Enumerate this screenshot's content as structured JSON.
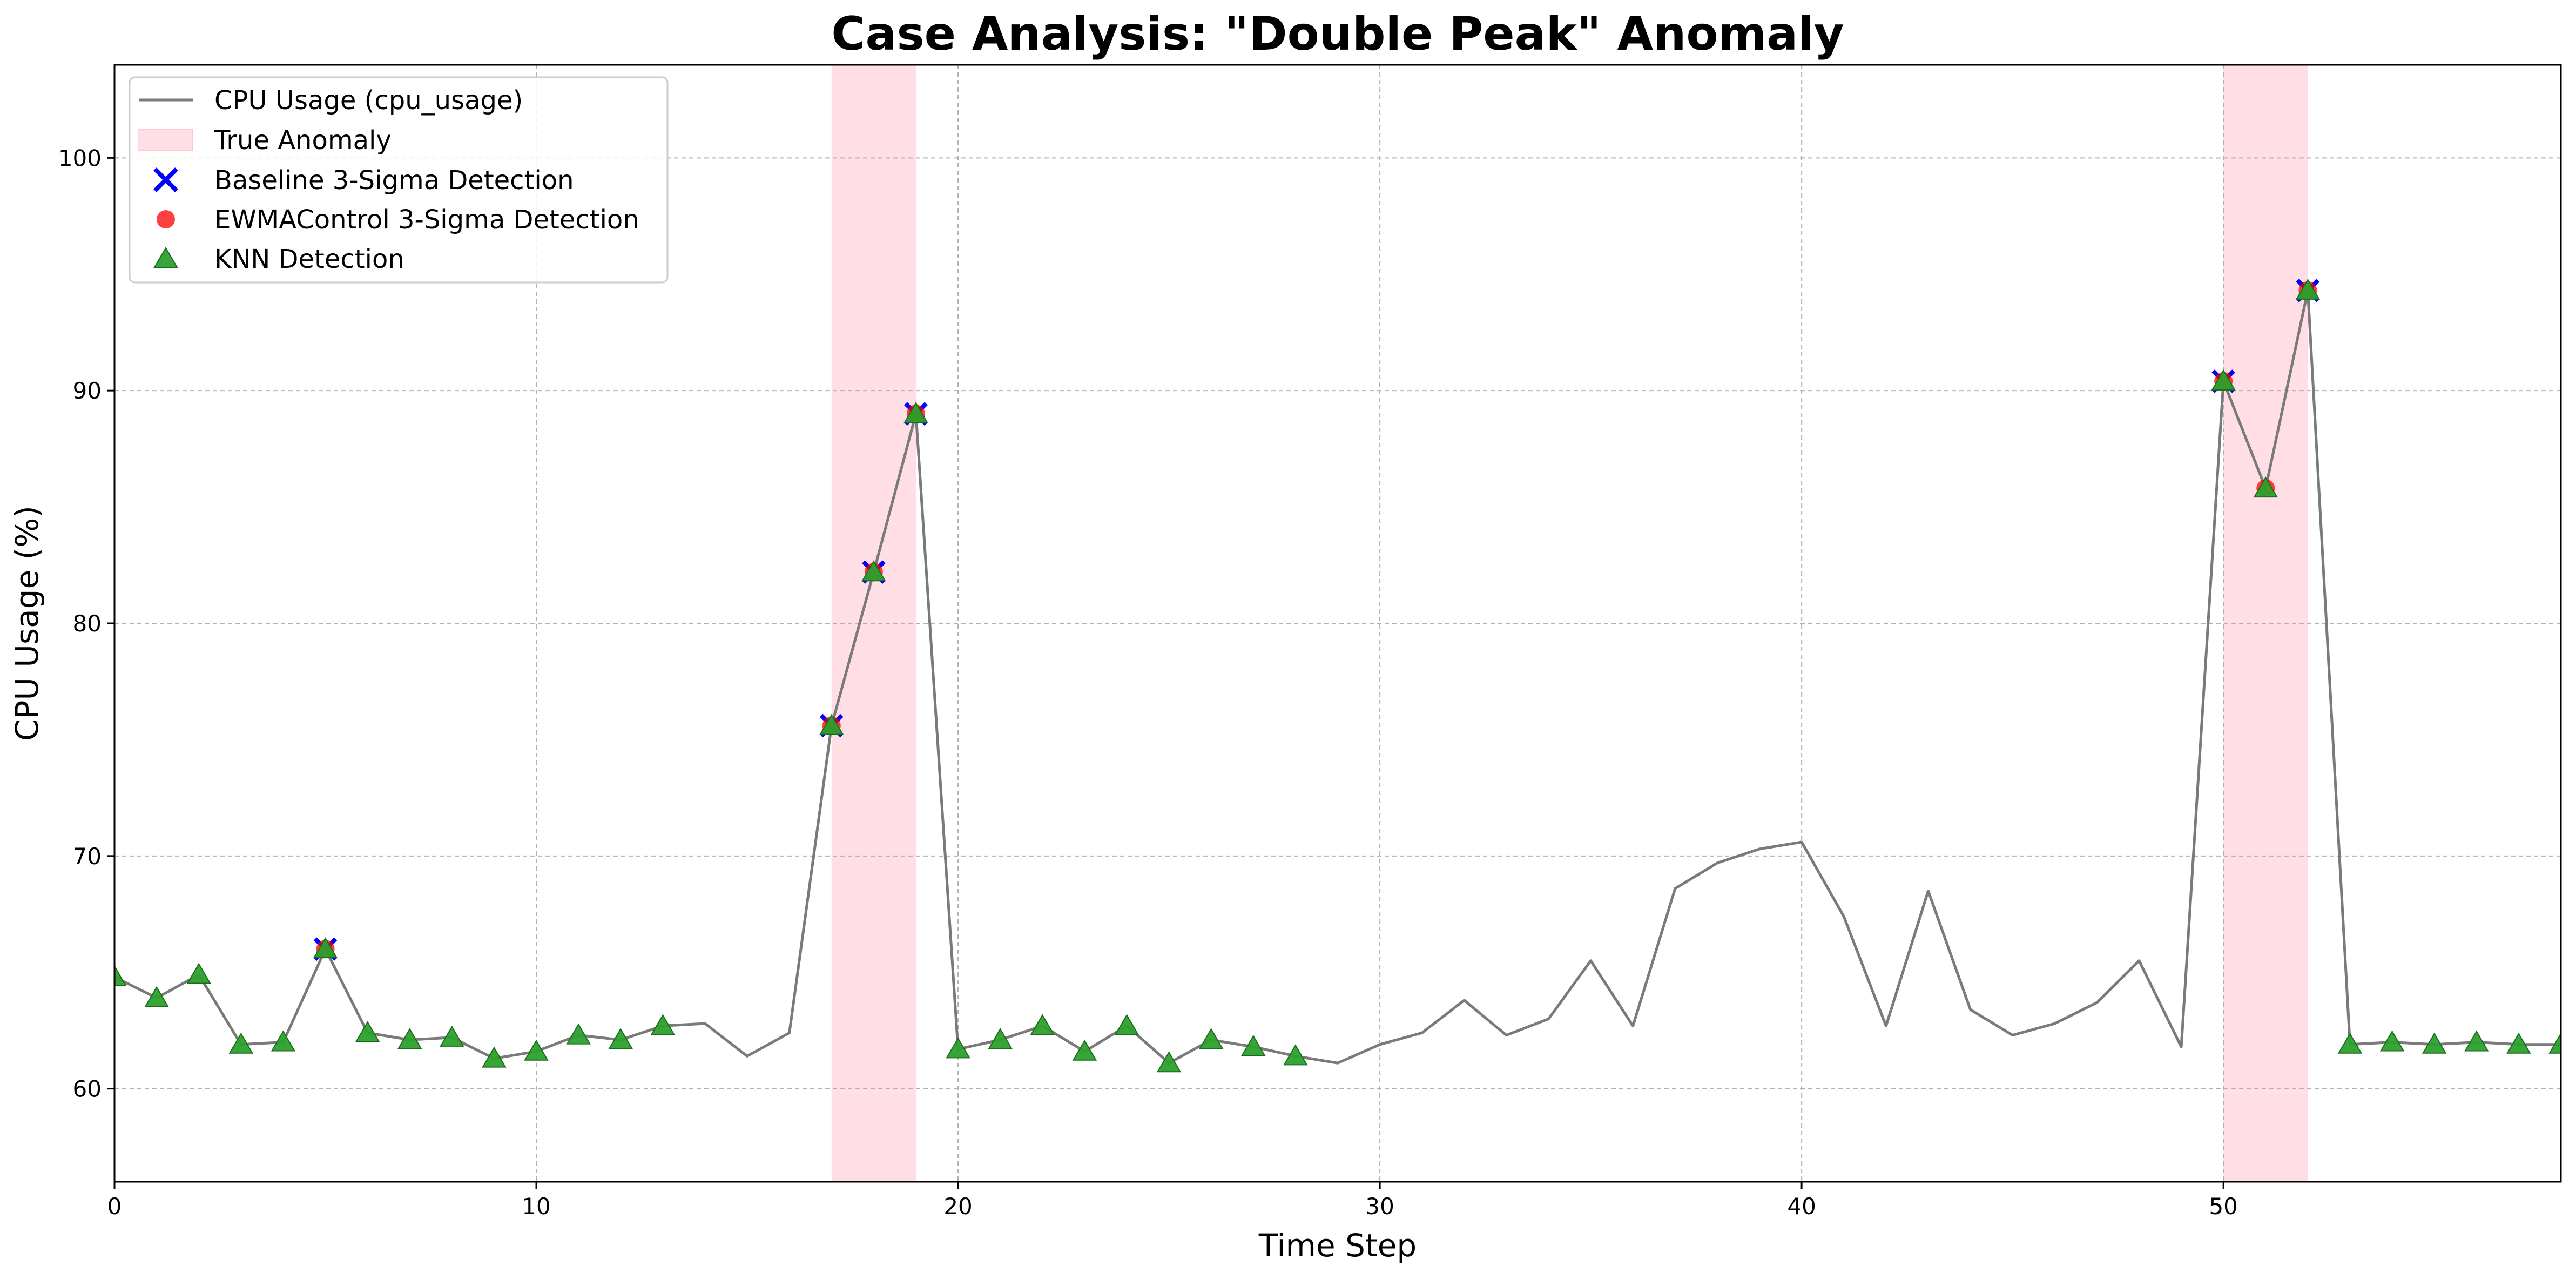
{
  "chart_data": {
    "type": "line",
    "title": "Case Analysis: \"Double Peak\" Anomaly",
    "xlabel": "Time Step",
    "ylabel": "CPU Usage (%)",
    "xlim": [
      0,
      58
    ],
    "ylim": [
      56,
      104
    ],
    "xticks": [
      0,
      10,
      20,
      30,
      40,
      50
    ],
    "yticks": [
      60,
      70,
      80,
      90,
      100
    ],
    "grid": true,
    "legend_position": "upper-left",
    "x": [
      0,
      1,
      2,
      3,
      4,
      5,
      6,
      7,
      8,
      9,
      10,
      11,
      12,
      13,
      14,
      15,
      16,
      17,
      18,
      19,
      20,
      21,
      22,
      23,
      24,
      25,
      26,
      27,
      28,
      29,
      30,
      31,
      32,
      33,
      34,
      35,
      36,
      37,
      38,
      39,
      40,
      41,
      42,
      43,
      44,
      45,
      46,
      47,
      48,
      49,
      50,
      51,
      52,
      53,
      54,
      55,
      56,
      57,
      58
    ],
    "series": [
      {
        "name": "CPU Usage (cpu_usage)",
        "kind": "line",
        "color": "#7a7a7a",
        "values": [
          64.8,
          63.9,
          64.9,
          61.9,
          62.0,
          66.0,
          62.4,
          62.1,
          62.2,
          61.3,
          61.6,
          62.3,
          62.1,
          62.7,
          62.8,
          61.4,
          62.4,
          75.6,
          82.2,
          89.0,
          61.7,
          62.1,
          62.7,
          61.6,
          62.7,
          61.1,
          62.1,
          61.8,
          61.4,
          61.1,
          61.9,
          62.4,
          63.8,
          62.3,
          63.0,
          65.5,
          62.7,
          68.6,
          69.7,
          70.3,
          70.6,
          67.4,
          62.7,
          68.5,
          63.4,
          62.3,
          62.8,
          63.7,
          65.5,
          61.8,
          90.4,
          85.8,
          94.3,
          61.9,
          62.0,
          61.9,
          62.0,
          61.9,
          61.9
        ]
      },
      {
        "name": "True Anomaly",
        "kind": "span",
        "color": "#ffc0cb",
        "spans": [
          [
            17,
            19
          ],
          [
            50,
            52
          ]
        ]
      },
      {
        "name": "Baseline 3-Sigma Detection",
        "kind": "marker-x",
        "color": "#0000ff",
        "x": [
          5,
          17,
          18,
          19,
          50,
          52
        ],
        "values": [
          66.0,
          75.6,
          82.2,
          89.0,
          90.4,
          94.3
        ]
      },
      {
        "name": "EWMAControl 3-Sigma Detection",
        "kind": "marker-circle",
        "color": "#ff0000",
        "x": [
          5,
          17,
          18,
          19,
          50,
          51,
          52
        ],
        "values": [
          66.0,
          75.6,
          82.2,
          89.0,
          90.4,
          85.8,
          94.3
        ]
      },
      {
        "name": "KNN Detection",
        "kind": "marker-triangle",
        "color": "#2ca02c",
        "x": [
          0,
          1,
          2,
          3,
          4,
          5,
          6,
          7,
          8,
          9,
          10,
          11,
          12,
          13,
          17,
          18,
          19,
          20,
          21,
          22,
          23,
          24,
          25,
          26,
          27,
          28,
          50,
          51,
          52,
          53,
          54,
          55,
          56,
          57,
          58
        ],
        "values": [
          64.8,
          63.9,
          64.9,
          61.9,
          62.0,
          66.0,
          62.4,
          62.1,
          62.2,
          61.3,
          61.6,
          62.3,
          62.1,
          62.7,
          75.6,
          82.2,
          89.0,
          61.7,
          62.1,
          62.7,
          61.6,
          62.7,
          61.1,
          62.1,
          61.8,
          61.4,
          90.4,
          85.8,
          94.3,
          61.9,
          62.0,
          61.9,
          62.0,
          61.9,
          61.9
        ]
      }
    ]
  }
}
